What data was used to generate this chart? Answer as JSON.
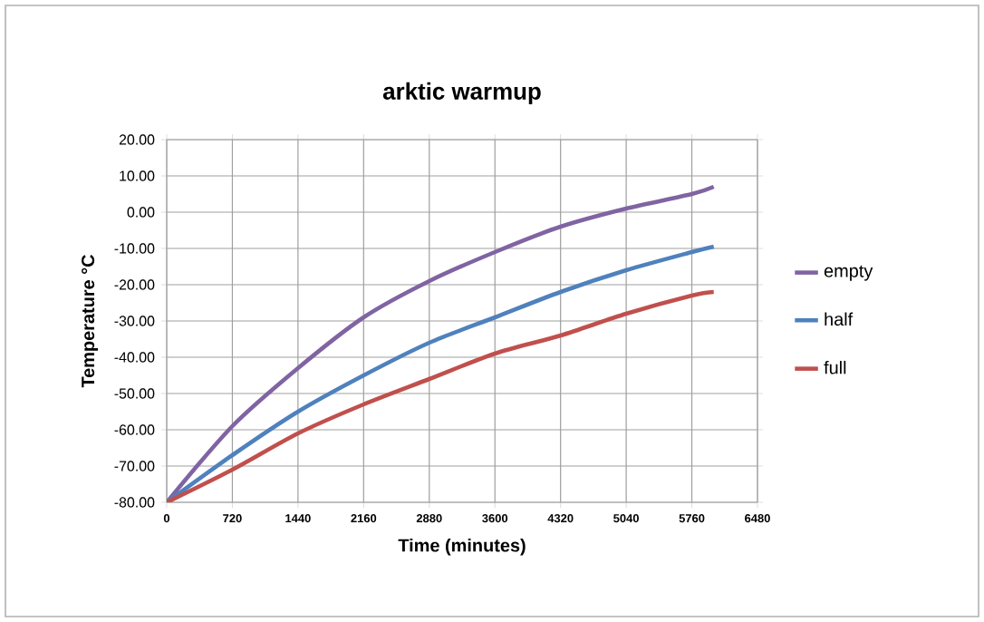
{
  "chart_data": {
    "type": "line",
    "title": "arktic warmup",
    "xlabel": "Time (minutes)",
    "ylabel": "Temperature  °C",
    "x": [
      0,
      720,
      1440,
      2160,
      2880,
      3600,
      4320,
      5040,
      5760,
      6000
    ],
    "series": [
      {
        "name": "empty",
        "color": "#8064a2",
        "values": [
          -80,
          -59,
          -43,
          -29,
          -19,
          -11,
          -4,
          1,
          5,
          7
        ]
      },
      {
        "name": "half",
        "color": "#4f81bd",
        "values": [
          -80,
          -67,
          -55,
          -45,
          -36,
          -29,
          -22,
          -16,
          -11,
          -9.5
        ]
      },
      {
        "name": "full",
        "color": "#c0504d",
        "values": [
          -80,
          -71,
          -61,
          -53,
          -46,
          -39,
          -34,
          -28,
          -23,
          -22
        ]
      }
    ],
    "xlim": [
      0,
      6480
    ],
    "xticks": [
      0,
      720,
      1440,
      2160,
      2880,
      3600,
      4320,
      5040,
      5760,
      6480
    ],
    "ylim": [
      -80,
      20
    ],
    "yticks": [
      {
        "value": -80,
        "label": "-80.00"
      },
      {
        "value": -70,
        "label": "-70.00"
      },
      {
        "value": -60,
        "label": "-60.00"
      },
      {
        "value": -50,
        "label": "-50.00"
      },
      {
        "value": -40,
        "label": "-40.00"
      },
      {
        "value": -30,
        "label": "-30.00"
      },
      {
        "value": -20,
        "label": "-20.00"
      },
      {
        "value": -10,
        "label": "-10.00"
      },
      {
        "value": 0,
        "label": "0.00"
      },
      {
        "value": 10,
        "label": "10.00"
      },
      {
        "value": 20,
        "label": "20.00"
      }
    ],
    "grid": true,
    "legend": "right",
    "marker": "none",
    "line_style": "solid"
  }
}
